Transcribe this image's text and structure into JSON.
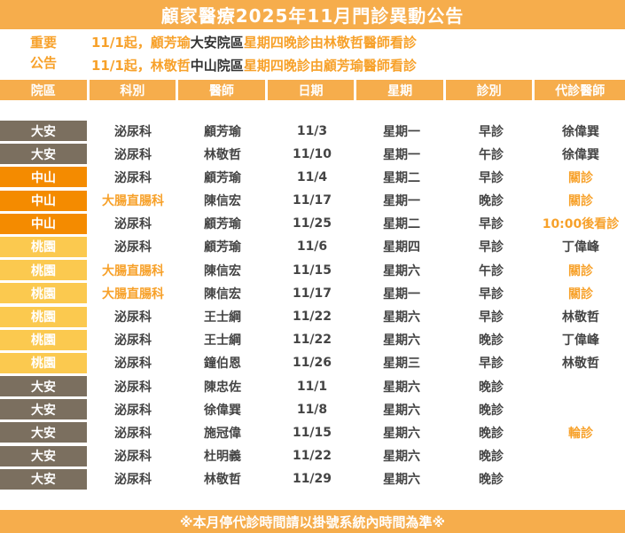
{
  "title": "顧家醫療2025年11月門診異動公告",
  "notice": {
    "label_line1": "重要",
    "label_line2": "公告",
    "line1": {
      "a": "11/1起，顧芳瑜",
      "b": "大安院區",
      "c": "星期四晚診由林敬哲醫師看診"
    },
    "line2": {
      "a": "11/1起，林敬哲",
      "b": "中山院區",
      "c": "星期四晚診由顧芳瑜醫師看診"
    }
  },
  "headers": [
    "院區",
    "科別",
    "醫師",
    "日期",
    "星期",
    "診別",
    "代診醫師"
  ],
  "colors": {
    "accent": "#f6ad4c",
    "daan": "#7b6f5f",
    "zhongshan": "#f48b00",
    "taoyuan": "#fbc94f",
    "highlight": "#f7a12a"
  },
  "rows": [
    {
      "branch": "大安",
      "branch_type": "daan",
      "dept": "泌尿科",
      "doctor": "顧芳瑜",
      "date": "11/3",
      "weekday": "星期一",
      "session": "早診",
      "sub": "徐偉巽",
      "sub_hl": false,
      "dept_hl": false
    },
    {
      "branch": "大安",
      "branch_type": "daan",
      "dept": "泌尿科",
      "doctor": "林敬哲",
      "date": "11/10",
      "weekday": "星期一",
      "session": "午診",
      "sub": "徐偉巽",
      "sub_hl": false,
      "dept_hl": false
    },
    {
      "branch": "中山",
      "branch_type": "zhongshan",
      "dept": "泌尿科",
      "doctor": "顧芳瑜",
      "date": "11/4",
      "weekday": "星期二",
      "session": "早診",
      "sub": "關診",
      "sub_hl": true,
      "dept_hl": false
    },
    {
      "branch": "中山",
      "branch_type": "zhongshan",
      "dept": "大腸直腸科",
      "doctor": "陳信宏",
      "date": "11/17",
      "weekday": "星期一",
      "session": "晚診",
      "sub": "關診",
      "sub_hl": true,
      "dept_hl": true
    },
    {
      "branch": "中山",
      "branch_type": "zhongshan",
      "dept": "泌尿科",
      "doctor": "顧芳瑜",
      "date": "11/25",
      "weekday": "星期二",
      "session": "早診",
      "sub": "10:00後看診",
      "sub_hl": true,
      "dept_hl": false
    },
    {
      "branch": "桃園",
      "branch_type": "taoyuan",
      "dept": "泌尿科",
      "doctor": "顧芳瑜",
      "date": "11/6",
      "weekday": "星期四",
      "session": "早診",
      "sub": "丁偉峰",
      "sub_hl": false,
      "dept_hl": false
    },
    {
      "branch": "桃園",
      "branch_type": "taoyuan",
      "dept": "大腸直腸科",
      "doctor": "陳信宏",
      "date": "11/15",
      "weekday": "星期六",
      "session": "午診",
      "sub": "關診",
      "sub_hl": true,
      "dept_hl": true
    },
    {
      "branch": "桃園",
      "branch_type": "taoyuan",
      "dept": "大腸直腸科",
      "doctor": "陳信宏",
      "date": "11/17",
      "weekday": "星期一",
      "session": "早診",
      "sub": "關診",
      "sub_hl": true,
      "dept_hl": true
    },
    {
      "branch": "桃園",
      "branch_type": "taoyuan",
      "dept": "泌尿科",
      "doctor": "王士綱",
      "date": "11/22",
      "weekday": "星期六",
      "session": "早診",
      "sub": "林敬哲",
      "sub_hl": false,
      "dept_hl": false
    },
    {
      "branch": "桃園",
      "branch_type": "taoyuan",
      "dept": "泌尿科",
      "doctor": "王士綱",
      "date": "11/22",
      "weekday": "星期六",
      "session": "晚診",
      "sub": "丁偉峰",
      "sub_hl": false,
      "dept_hl": false
    },
    {
      "branch": "桃園",
      "branch_type": "taoyuan",
      "dept": "泌尿科",
      "doctor": "鐘伯恩",
      "date": "11/26",
      "weekday": "星期三",
      "session": "早診",
      "sub": "林敬哲",
      "sub_hl": false,
      "dept_hl": false
    },
    {
      "branch": "大安",
      "branch_type": "daan",
      "dept": "泌尿科",
      "doctor": "陳忠佐",
      "date": "11/1",
      "weekday": "星期六",
      "session": "晚診",
      "sub": "",
      "sub_hl": false,
      "dept_hl": false
    },
    {
      "branch": "大安",
      "branch_type": "daan",
      "dept": "泌尿科",
      "doctor": "徐偉巽",
      "date": "11/8",
      "weekday": "星期六",
      "session": "晚診",
      "sub": "",
      "sub_hl": false,
      "dept_hl": false
    },
    {
      "branch": "大安",
      "branch_type": "daan",
      "dept": "泌尿科",
      "doctor": "施冠偉",
      "date": "11/15",
      "weekday": "星期六",
      "session": "晚診",
      "sub": "輪診",
      "sub_hl": true,
      "dept_hl": false
    },
    {
      "branch": "大安",
      "branch_type": "daan",
      "dept": "泌尿科",
      "doctor": "杜明義",
      "date": "11/22",
      "weekday": "星期六",
      "session": "晚診",
      "sub": "",
      "sub_hl": false,
      "dept_hl": false
    },
    {
      "branch": "大安",
      "branch_type": "daan",
      "dept": "泌尿科",
      "doctor": "林敬哲",
      "date": "11/29",
      "weekday": "星期六",
      "session": "晚診",
      "sub": "",
      "sub_hl": false,
      "dept_hl": false
    }
  ],
  "footer": "※本月停代診時間請以掛號系統內時間為準※"
}
